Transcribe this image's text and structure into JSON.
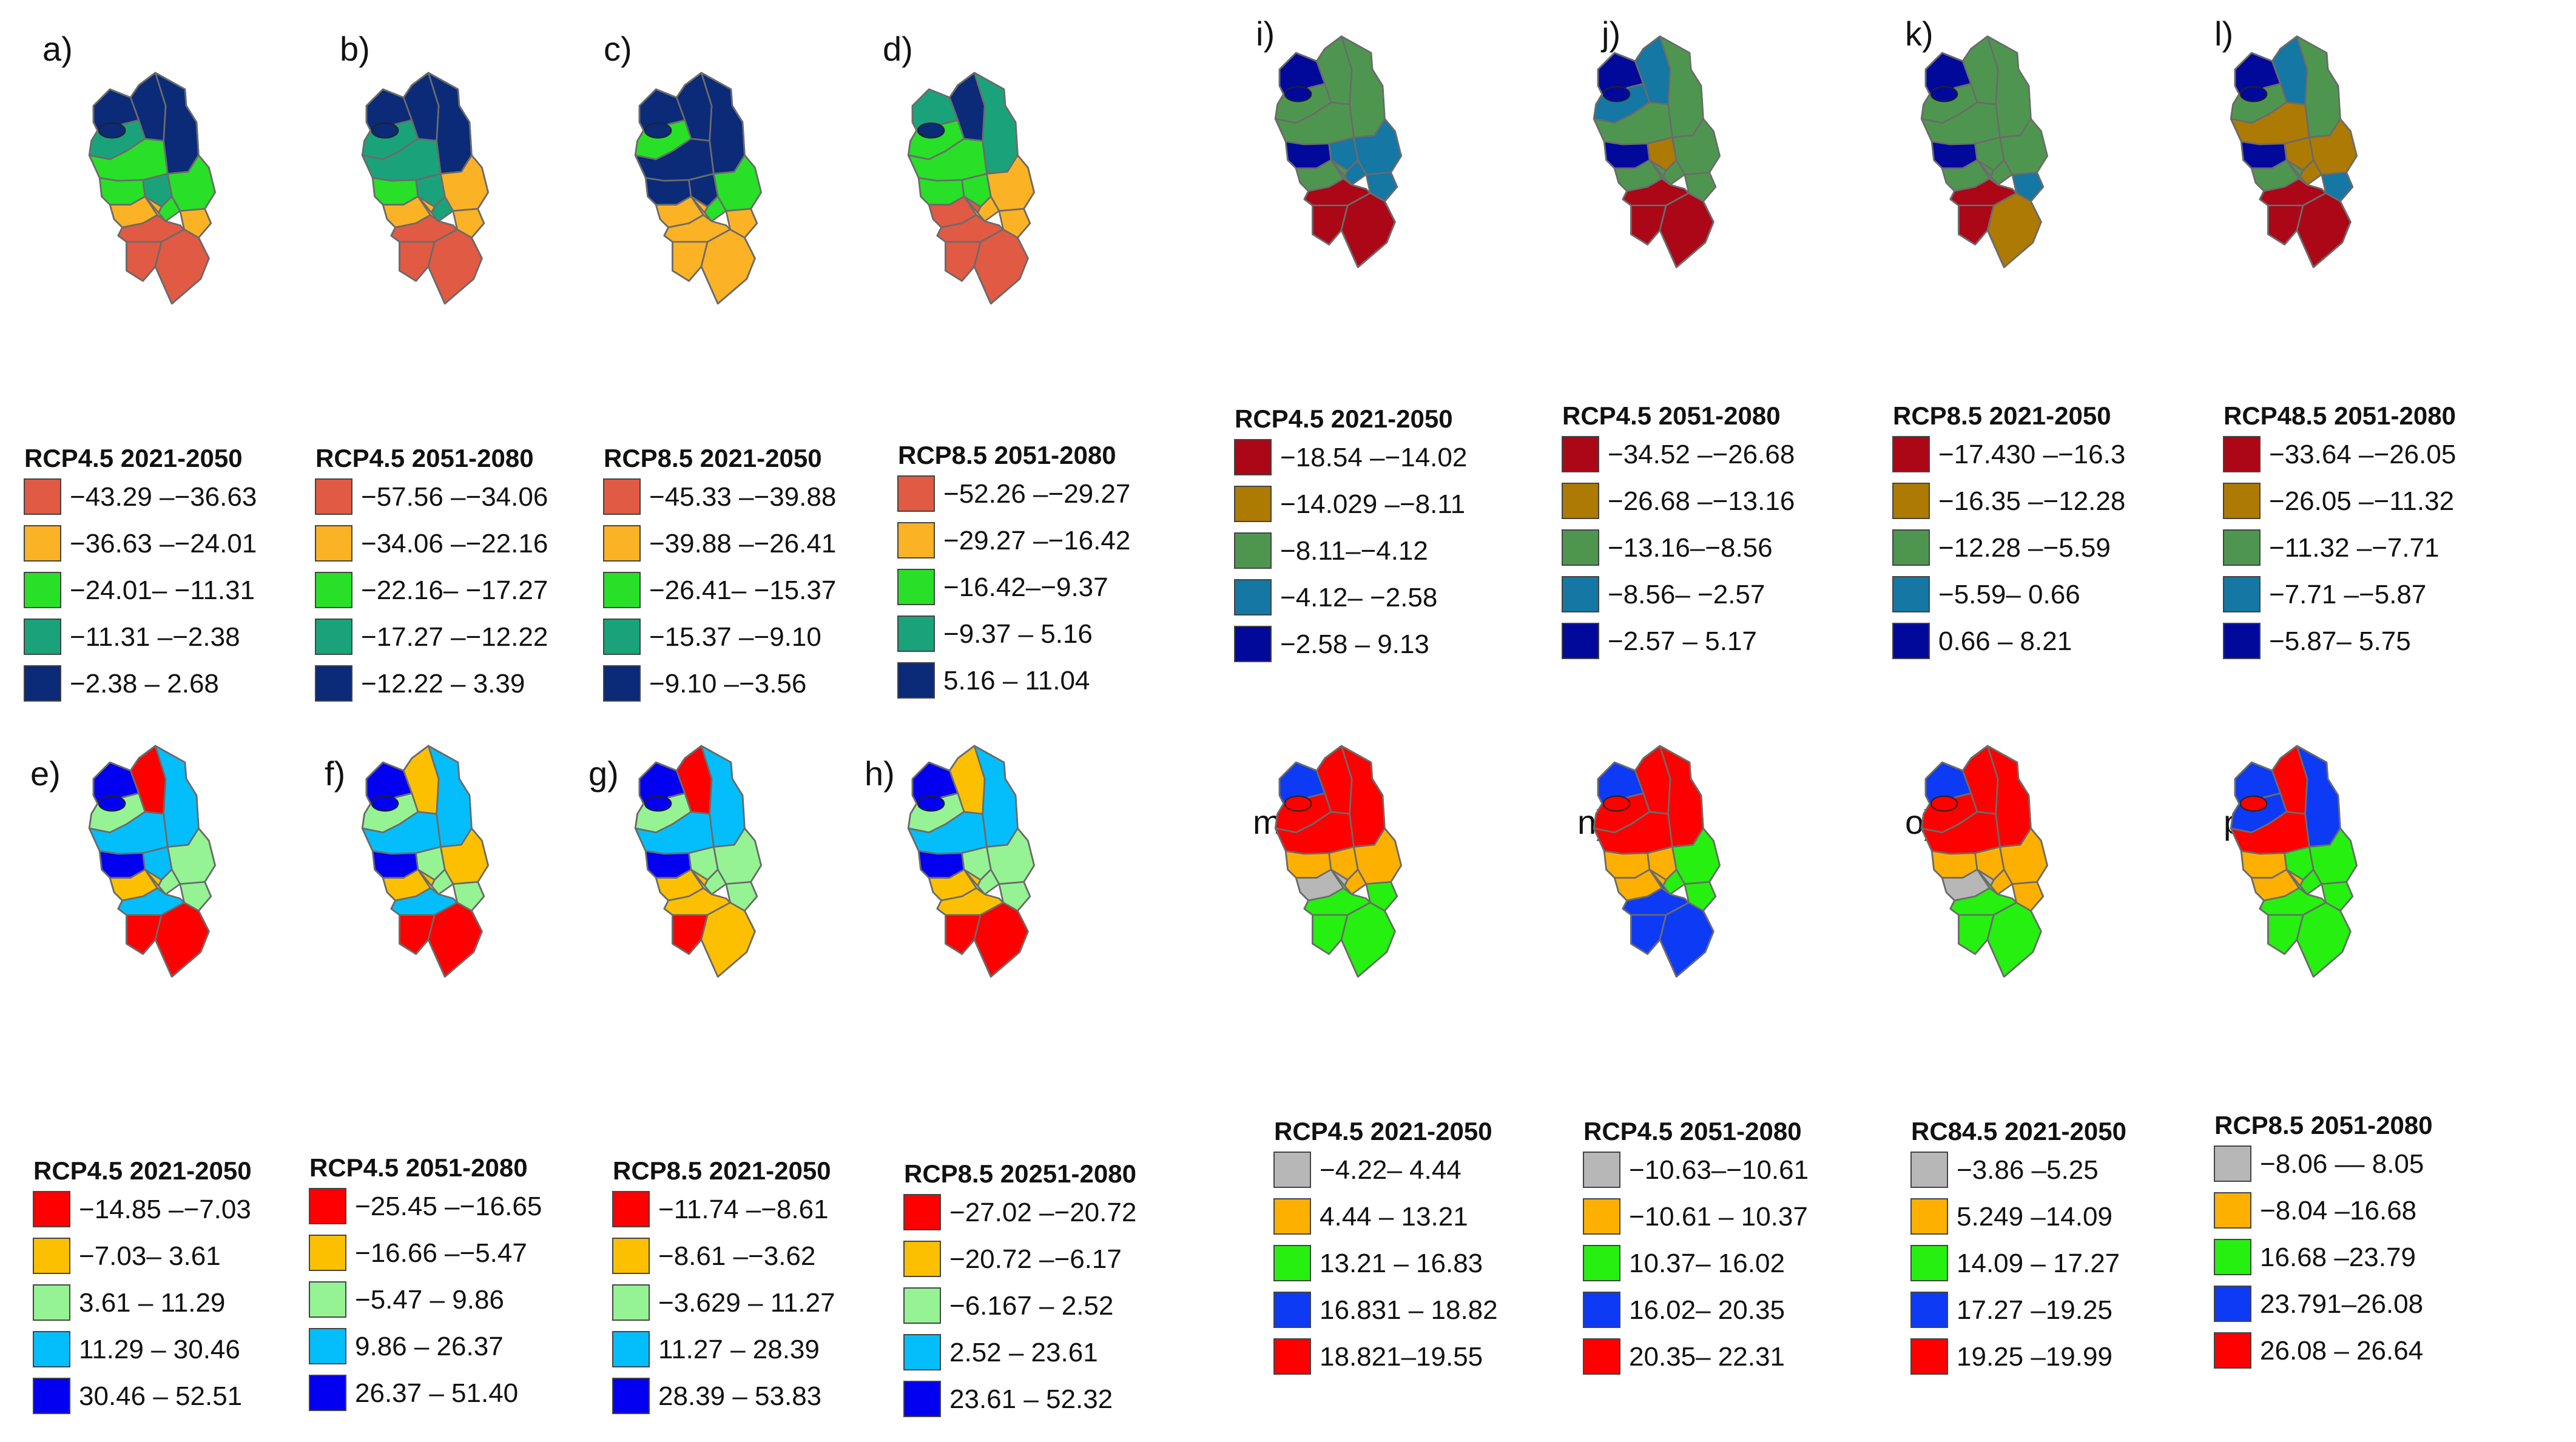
{
  "colors": {
    "p1": [
      "#e05a44",
      "#fbb225",
      "#28e028",
      "#1aa37a",
      "#0b2a78"
    ],
    "p2": [
      "#ab0717",
      "#ad7a04",
      "#4e9650",
      "#1477a4",
      "#01099b"
    ],
    "p3": [
      "#fe0000",
      "#fdc000",
      "#95f394",
      "#04befc",
      "#0300f2"
    ],
    "p4": [
      "#b7b7b7",
      "#fdb000",
      "#25f010",
      "#0d3af4",
      "#fe0000"
    ]
  },
  "panels": [
    {
      "label": "a)",
      "palette": "p1",
      "fills": [
        4,
        4,
        4,
        3,
        2,
        2,
        2,
        3,
        2,
        1,
        1,
        1,
        0,
        0,
        0
      ],
      "title": "RCP4.5 2021-2050",
      "legend": [
        "−43.29 –−36.63",
        "−36.63 –−24.01",
        "−24.01– −11.31",
        "−11.31 –−2.38",
        "−2.38 – 2.68"
      ]
    },
    {
      "label": "b)",
      "palette": "p1",
      "fills": [
        4,
        4,
        4,
        3,
        3,
        1,
        2,
        3,
        3,
        1,
        1,
        1,
        0,
        0,
        0
      ],
      "title": "RCP4.5 2051-2080",
      "legend": [
        "−57.56 –−34.06",
        "−34.06 –−22.16",
        "−22.16– −17.27",
        "−17.27 –−12.22",
        "−12.22 – 3.39"
      ]
    },
    {
      "label": "c)",
      "palette": "p1",
      "fills": [
        4,
        4,
        4,
        2,
        4,
        2,
        4,
        4,
        2,
        1,
        1,
        1,
        1,
        1,
        1
      ],
      "title": "RCP8.5 2021-2050",
      "legend": [
        "−45.33 –−39.88",
        "−39.88 –−26.41",
        "−26.41– −15.37",
        "−15.37 –−9.10",
        "−9.10 –−3.56"
      ]
    },
    {
      "label": "d)",
      "palette": "p1",
      "fills": [
        3,
        4,
        3,
        2,
        2,
        1,
        2,
        2,
        1,
        1,
        0,
        1,
        0,
        0,
        0
      ],
      "title": "RCP8.5 2051-2080",
      "legend": [
        "−52.26 –−29.27",
        "−29.27 –−16.42",
        "−16.42–−9.37",
        "−9.37 – 5.16",
        "5.16 – 11.04"
      ]
    },
    {
      "label": "e)",
      "palette": "p3",
      "fills": [
        3,
        0,
        4,
        2,
        3,
        2,
        4,
        3,
        2,
        2,
        1,
        1,
        3,
        0,
        0
      ],
      "title": "RCP4.5 2021-2050",
      "legend": [
        "−14.85 –−7.03",
        "−7.03– 3.61",
        "3.61 – 11.29",
        "11.29 – 30.46",
        "30.46 – 52.51"
      ]
    },
    {
      "label": "f)",
      "palette": "p3",
      "fills": [
        3,
        1,
        4,
        2,
        3,
        1,
        4,
        2,
        2,
        2,
        1,
        2,
        3,
        0,
        0
      ],
      "title": "RCP4.5 2051-2080",
      "legend": [
        "−25.45 –−16.65",
        "−16.66 –−5.47",
        "−5.47 – 9.86",
        "9.86 – 26.37",
        "26.37 – 51.40"
      ]
    },
    {
      "label": "g)",
      "palette": "p3",
      "fills": [
        3,
        0,
        4,
        2,
        3,
        2,
        4,
        2,
        2,
        2,
        1,
        2,
        1,
        0,
        1
      ],
      "title": "RCP8.5 2021-2050",
      "legend": [
        "−11.74 –−8.61",
        "−8.61 –−3.62",
        "−3.629 – 11.27",
        "11.27 – 28.39",
        "28.39 – 53.83"
      ]
    },
    {
      "label": "h)",
      "palette": "p3",
      "fills": [
        3,
        1,
        4,
        2,
        3,
        2,
        4,
        2,
        2,
        2,
        1,
        2,
        1,
        0,
        0
      ],
      "title": "RCP8.5 20251-2080",
      "legend": [
        "−27.02 –−20.72",
        "−20.72 –−6.17",
        "−6.167 – 2.52",
        "2.52 – 23.61",
        "23.61 – 52.32"
      ]
    },
    {
      "label": "i)",
      "palette": "p2",
      "fills": [
        2,
        2,
        4,
        2,
        2,
        3,
        4,
        3,
        3,
        3,
        2,
        2,
        0,
        0,
        0
      ],
      "title": "RCP4.5 2021-2050",
      "legend": [
        "−18.54 –−14.02",
        "−14.029 –−8.11",
        "−8.11–−4.12",
        "−4.12– −2.58",
        "−2.58 – 9.13"
      ]
    },
    {
      "label": "j)",
      "palette": "p2",
      "fills": [
        2,
        3,
        4,
        3,
        2,
        2,
        4,
        1,
        2,
        2,
        2,
        2,
        0,
        0,
        0
      ],
      "title": "RCP4.5 2051-2080",
      "legend": [
        "−34.52 –−26.68",
        "−26.68 –−13.16",
        "−13.16–−8.56",
        "−8.56– −2.57",
        "−2.57 – 5.17"
      ]
    },
    {
      "label": "k)",
      "palette": "p2",
      "fills": [
        2,
        2,
        4,
        2,
        2,
        2,
        4,
        2,
        2,
        3,
        2,
        2,
        0,
        0,
        1
      ],
      "title": "RCP8.5 2021-2050",
      "legend": [
        "−17.430 –−16.3",
        "−16.35 –−12.28",
        "−12.28 –−5.59",
        "−5.59– 0.66",
        "0.66 – 8.21"
      ]
    },
    {
      "label": "l)",
      "palette": "p2",
      "fills": [
        2,
        3,
        4,
        2,
        1,
        1,
        4,
        1,
        1,
        3,
        2,
        2,
        0,
        0,
        0
      ],
      "title": "RCP48.5 2051-2080",
      "legend": [
        "−33.64 –−26.05",
        "−26.05 –−11.32",
        "−11.32 –−7.71",
        "−7.71 –−5.87",
        "−5.87– 5.75"
      ]
    },
    {
      "label": "m)",
      "palette": "p4",
      "fills": [
        4,
        4,
        3,
        4,
        4,
        1,
        1,
        1,
        1,
        2,
        0,
        2,
        2,
        2,
        2
      ],
      "title": "RCP4.5 2021-2050",
      "legend": [
        "−4.22– 4.44",
        "4.44 – 13.21",
        "13.21 – 16.83",
        "16.831 – 18.82",
        "18.821–19.55"
      ]
    },
    {
      "label": "n)",
      "palette": "p4",
      "fills": [
        4,
        4,
        3,
        4,
        4,
        2,
        1,
        1,
        2,
        2,
        1,
        3,
        3,
        3,
        3
      ],
      "title": "RCP4.5 2051-2080",
      "legend": [
        "−10.63–−10.61",
        "−10.61 – 10.37",
        "10.37– 16.02",
        "16.02– 20.35",
        "20.35– 22.31"
      ]
    },
    {
      "label": "o)",
      "palette": "p4",
      "fills": [
        4,
        4,
        3,
        4,
        4,
        1,
        1,
        1,
        1,
        1,
        0,
        2,
        2,
        2,
        2
      ],
      "title": "RC84.5 2021-2050",
      "legend": [
        "−3.86 –5.25",
        "5.249 –14.09",
        "14.09 – 17.27",
        "17.27 –19.25",
        "19.25 –19.99"
      ]
    },
    {
      "label": "p)",
      "palette": "p4",
      "fills": [
        3,
        4,
        3,
        3,
        4,
        2,
        1,
        2,
        2,
        2,
        1,
        2,
        2,
        2,
        2
      ],
      "title": "RCP8.5 2051-2080",
      "legend": [
        "−8.06 –– 8.05",
        "−8.04 –16.68",
        "16.68 –23.79",
        "23.791–26.08",
        "26.08 – 26.64"
      ]
    }
  ]
}
